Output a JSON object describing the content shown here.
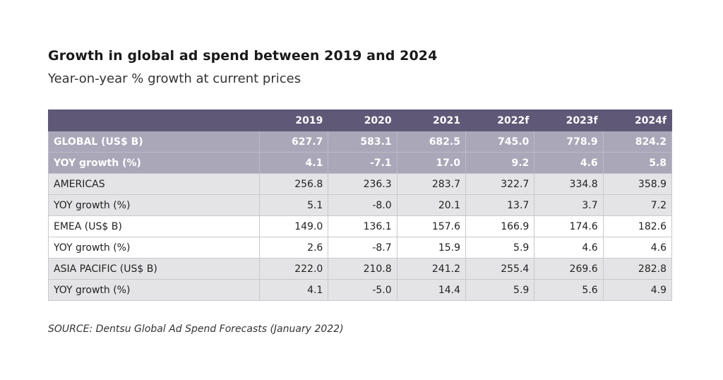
{
  "chart_data": {
    "type": "table",
    "title": "Growth in global ad spend between 2019 and 2024",
    "subtitle": "Year-on-year % growth at current prices",
    "columns": [
      "",
      "2019",
      "2020",
      "2021",
      "2022f",
      "2023f",
      "2024f"
    ],
    "rows": [
      {
        "label": "GLOBAL (US$ B)",
        "values": [
          "627.7",
          "583.1",
          "682.5",
          "745.0",
          "778.9",
          "824.2"
        ],
        "style": "global"
      },
      {
        "label": "YOY growth (%)",
        "values": [
          "4.1",
          "-7.1",
          "17.0",
          "9.2",
          "4.6",
          "5.8"
        ],
        "style": "global"
      },
      {
        "label": "AMERICAS",
        "values": [
          "256.8",
          "236.3",
          "283.7",
          "322.7",
          "334.8",
          "358.9"
        ],
        "style": "grey"
      },
      {
        "label": "YOY growth (%)",
        "values": [
          "5.1",
          "-8.0",
          "20.1",
          "13.7",
          "3.7",
          "7.2"
        ],
        "style": "grey"
      },
      {
        "label": "EMEA (US$ B)",
        "values": [
          "149.0",
          "136.1",
          "157.6",
          "166.9",
          "174.6",
          "182.6"
        ],
        "style": "white"
      },
      {
        "label": "YOY growth (%)",
        "values": [
          "2.6",
          "-8.7",
          "15.9",
          "5.9",
          "4.6",
          "4.6"
        ],
        "style": "white"
      },
      {
        "label": "ASIA PACIFIC (US$ B)",
        "values": [
          "222.0",
          "210.8",
          "241.2",
          "255.4",
          "269.6",
          "282.8"
        ],
        "style": "grey"
      },
      {
        "label": "YOY growth (%)",
        "values": [
          "4.1",
          "-5.0",
          "14.4",
          "5.9",
          "5.6",
          "4.9"
        ],
        "style": "grey"
      }
    ],
    "source": "SOURCE: Dentsu Global Ad Spend Forecasts (January 2022)",
    "colors": {
      "header": "#5f5877",
      "global_rows": "#aaa7b9",
      "shaded_rows": "#e4e4e6",
      "plain_rows": "#ffffff"
    }
  }
}
